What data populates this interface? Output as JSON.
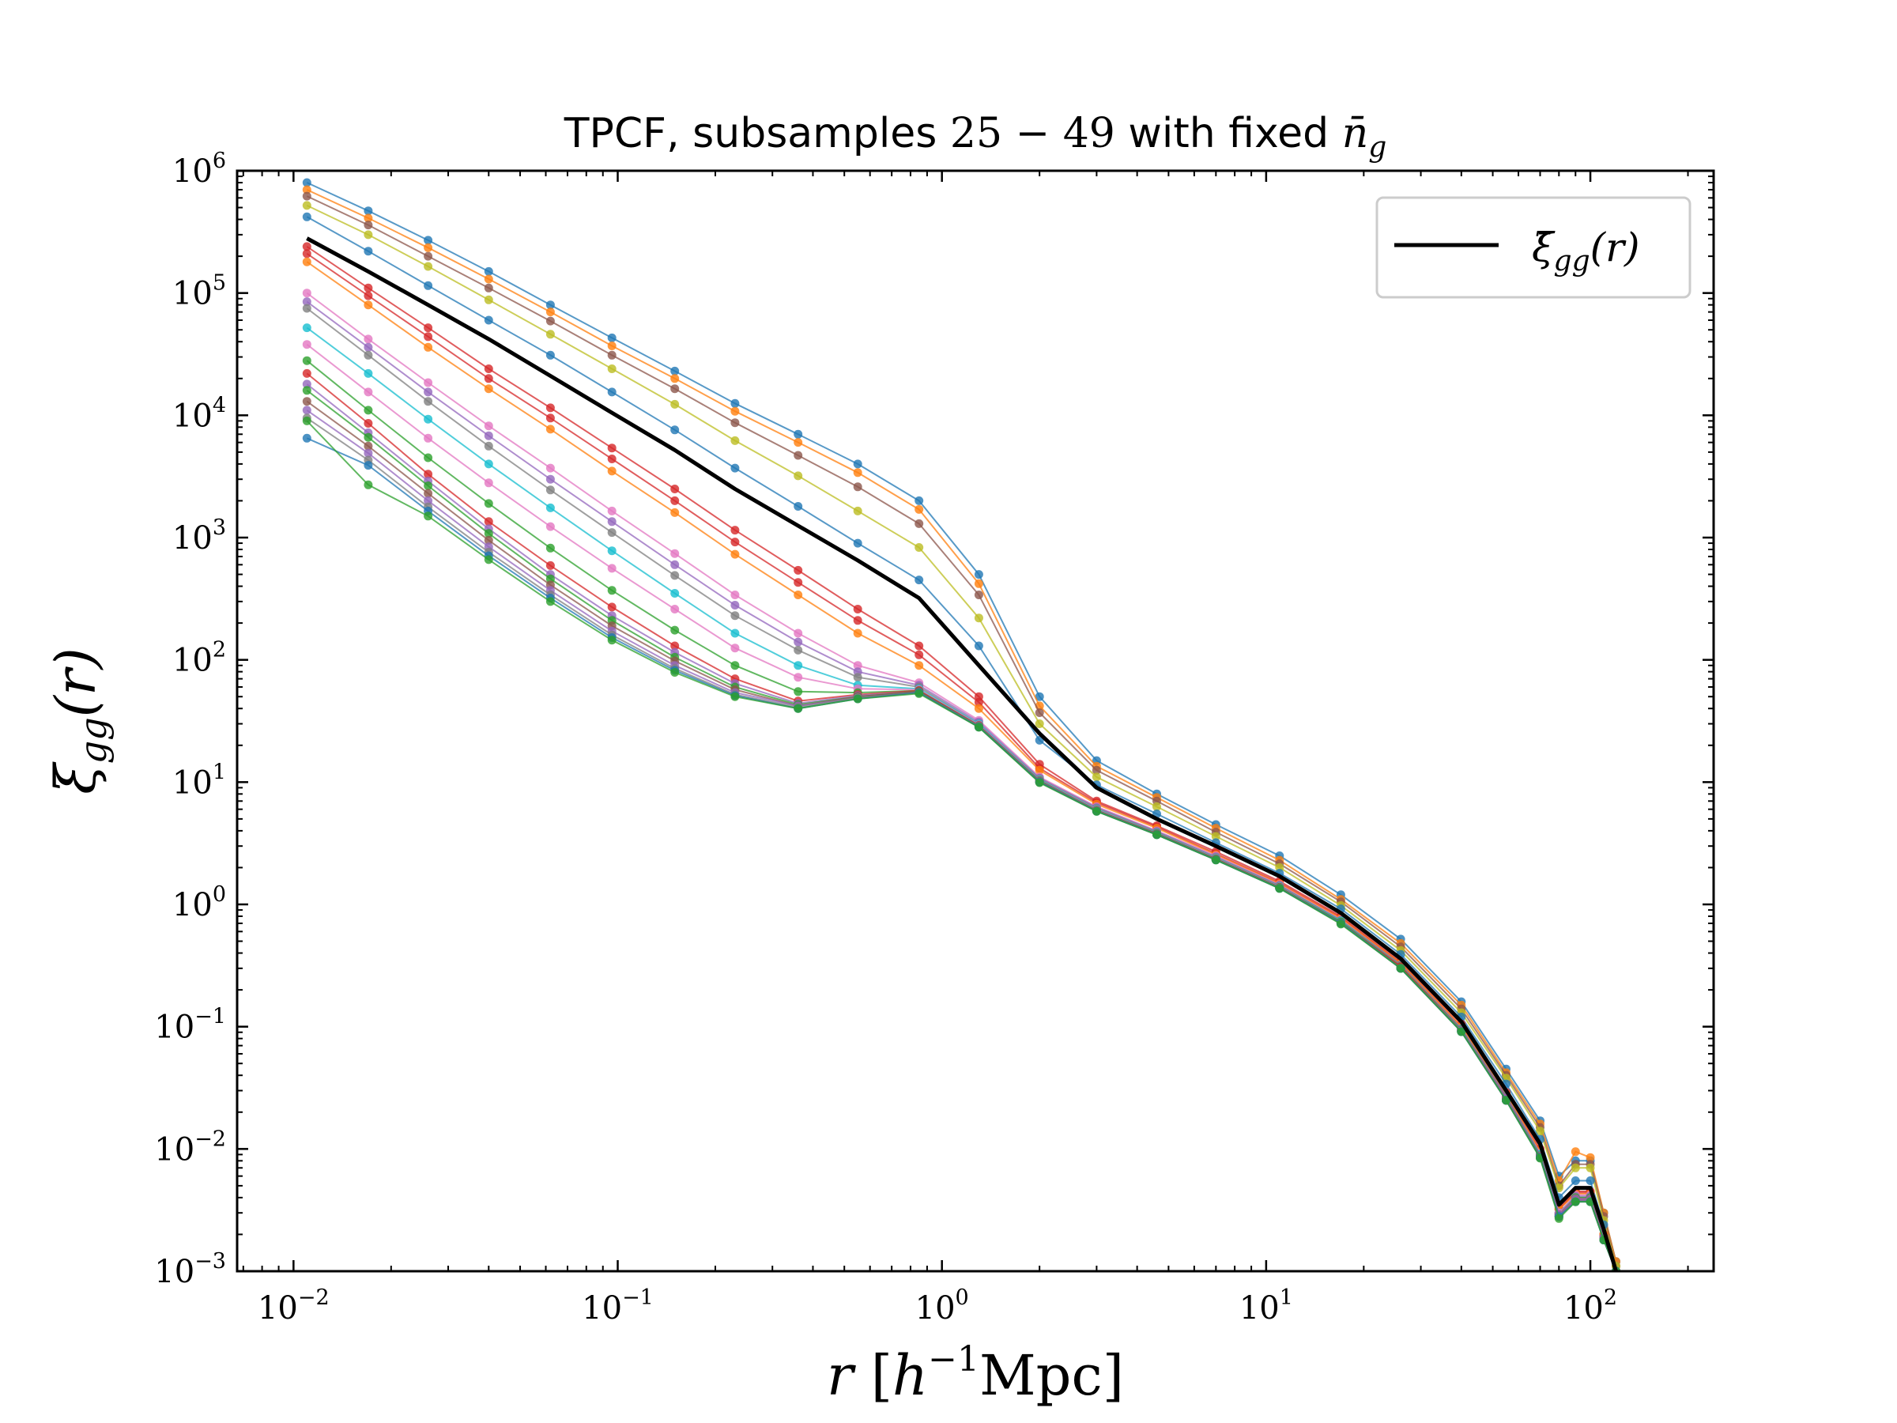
{
  "chart_data": {
    "type": "line",
    "title": "TPCF, subsamples 25 − 49 with fixed n̄g",
    "title_parts": {
      "prefix": "TPCF, subsamples ",
      "range": "25 − 49",
      "mid": " with fixed ",
      "symbol": "n̄",
      "symbol_sub": "g"
    },
    "xlabel": "r [h⁻¹Mpc]",
    "ylabel": "ξg g(r)",
    "xlabel_parts": {
      "var": "r",
      "open": " [",
      "h": "h",
      "sup": "−1",
      "unit": "Mpc",
      "close": "]"
    },
    "ylabel_parts": {
      "sym": "ξ",
      "sub": "gg",
      "arg": "(r)"
    },
    "x_scale": "log",
    "y_scale": "log",
    "xlim": [
      0.0067,
      240
    ],
    "ylim": [
      0.001,
      1000000
    ],
    "x_ticks": [
      {
        "base": "10",
        "exp": "−2",
        "value": 0.01
      },
      {
        "base": "10",
        "exp": "−1",
        "value": 0.1
      },
      {
        "base": "10",
        "exp": "0",
        "value": 1
      },
      {
        "base": "10",
        "exp": "1",
        "value": 10
      },
      {
        "base": "10",
        "exp": "2",
        "value": 100
      }
    ],
    "y_ticks": [
      {
        "base": "10",
        "exp": "−3",
        "value": 0.001
      },
      {
        "base": "10",
        "exp": "−2",
        "value": 0.01
      },
      {
        "base": "10",
        "exp": "−1",
        "value": 0.1
      },
      {
        "base": "10",
        "exp": "0",
        "value": 1
      },
      {
        "base": "10",
        "exp": "1",
        "value": 10
      },
      {
        "base": "10",
        "exp": "2",
        "value": 100
      },
      {
        "base": "10",
        "exp": "3",
        "value": 1000
      },
      {
        "base": "10",
        "exp": "4",
        "value": 10000
      },
      {
        "base": "10",
        "exp": "5",
        "value": 100000
      },
      {
        "base": "10",
        "exp": "6",
        "value": 1000000
      }
    ],
    "grid": false,
    "legend": {
      "placement": "upper-right",
      "entries": [
        {
          "label": "ξ̄gg(r)",
          "sym": "ξ̄",
          "sub": "gg",
          "arg": "(r)",
          "color": "#000000"
        }
      ]
    },
    "x": [
      0.011,
      0.017,
      0.026,
      0.04,
      0.062,
      0.096,
      0.15,
      0.23,
      0.36,
      0.55,
      0.85,
      1.3,
      2.0,
      3.0,
      4.6,
      7.0,
      11.0,
      17.0,
      26.0,
      40.0,
      55.0,
      70.0,
      80.0,
      90.0,
      100.0,
      110.0,
      120.0
    ],
    "mean_series": {
      "name": "ξ̄gg(r)",
      "color": "#000000",
      "y": [
        280000,
        150000,
        80000,
        42000,
        21000,
        10500,
        5200,
        2500,
        1250,
        650,
        320,
        90,
        25,
        9,
        5,
        3,
        1.7,
        0.85,
        0.36,
        0.11,
        0.03,
        0.011,
        0.0035,
        0.0048,
        0.0048,
        0.0022,
        0.001
      ]
    },
    "series": [
      {
        "color": "#1f77b4",
        "y": [
          800000,
          470000,
          270000,
          150000,
          80000,
          43000,
          23000,
          12500,
          7000,
          4000,
          2000,
          500,
          50,
          15,
          8,
          4.5,
          2.5,
          1.2,
          0.52,
          0.16,
          0.045,
          0.017,
          0.006,
          0.008,
          0.008,
          0.003,
          0.0012
        ]
      },
      {
        "color": "#ff7f0e",
        "y": [
          700000,
          410000,
          235000,
          130000,
          70000,
          37000,
          20000,
          10800,
          6000,
          3400,
          1700,
          420,
          42,
          13.5,
          7.5,
          4.2,
          2.3,
          1.1,
          0.48,
          0.15,
          0.042,
          0.016,
          0.0055,
          0.0095,
          0.0085,
          0.003,
          0.0012
        ]
      },
      {
        "color": "#8c564b",
        "y": [
          620000,
          360000,
          200000,
          110000,
          59000,
          31000,
          16500,
          8700,
          4700,
          2600,
          1300,
          340,
          37,
          12.5,
          7,
          3.9,
          2.15,
          1.05,
          0.45,
          0.14,
          0.04,
          0.015,
          0.005,
          0.0075,
          0.0075,
          0.0028,
          0.0011
        ]
      },
      {
        "color": "#bcbd22",
        "y": [
          520000,
          300000,
          165000,
          88000,
          46000,
          24000,
          12300,
          6200,
          3200,
          1650,
          830,
          220,
          30,
          11,
          6.3,
          3.6,
          2.0,
          0.98,
          0.42,
          0.13,
          0.038,
          0.014,
          0.0048,
          0.007,
          0.007,
          0.0026,
          0.0011
        ]
      },
      {
        "color": "#1f77b4",
        "y": [
          420000,
          220000,
          115000,
          60000,
          31000,
          15500,
          7600,
          3700,
          1800,
          900,
          450,
          130,
          22,
          9.5,
          5.5,
          3.2,
          1.8,
          0.92,
          0.39,
          0.12,
          0.034,
          0.012,
          0.004,
          0.0055,
          0.0055,
          0.0024,
          0.001
        ]
      },
      {
        "color": "#d62728",
        "y": [
          240000,
          110000,
          52000,
          24000,
          11500,
          5400,
          2500,
          1150,
          540,
          260,
          130,
          50,
          14,
          7,
          4.4,
          2.7,
          1.55,
          0.8,
          0.34,
          0.105,
          0.029,
          0.01,
          0.0033,
          0.0045,
          0.0045,
          0.002,
          0.001
        ]
      },
      {
        "color": "#d62728",
        "y": [
          210000,
          95000,
          44000,
          20000,
          9500,
          4400,
          2000,
          920,
          430,
          210,
          110,
          45,
          13,
          6.8,
          4.3,
          2.6,
          1.5,
          0.78,
          0.33,
          0.1,
          0.028,
          0.0095,
          0.0032,
          0.0044,
          0.0044,
          0.002,
          0.001
        ]
      },
      {
        "color": "#ff7f0e",
        "y": [
          180000,
          80000,
          36000,
          16500,
          7700,
          3500,
          1600,
          730,
          340,
          165,
          90,
          40,
          12.5,
          6.6,
          4.2,
          2.55,
          1.48,
          0.77,
          0.33,
          0.1,
          0.028,
          0.0095,
          0.0032,
          0.0043,
          0.0043,
          0.002,
          0.001
        ]
      },
      {
        "color": "#e377c2",
        "y": [
          100000,
          42000,
          18500,
          8200,
          3700,
          1650,
          740,
          340,
          165,
          90,
          65,
          32,
          11,
          6.3,
          4.0,
          2.5,
          1.45,
          0.75,
          0.32,
          0.097,
          0.027,
          0.0092,
          0.003,
          0.0042,
          0.0042,
          0.0019,
          0.001
        ]
      },
      {
        "color": "#9467bd",
        "y": [
          85000,
          36000,
          15500,
          6800,
          3000,
          1350,
          600,
          280,
          140,
          80,
          62,
          31,
          10.8,
          6.2,
          3.95,
          2.45,
          1.43,
          0.74,
          0.32,
          0.096,
          0.027,
          0.009,
          0.003,
          0.0041,
          0.0041,
          0.0019,
          0.001
        ]
      },
      {
        "color": "#7f7f7f",
        "y": [
          75000,
          31000,
          13000,
          5600,
          2450,
          1100,
          490,
          230,
          120,
          72,
          60,
          30,
          10.6,
          6.1,
          3.9,
          2.42,
          1.42,
          0.74,
          0.32,
          0.096,
          0.027,
          0.009,
          0.003,
          0.004,
          0.004,
          0.0019,
          0.001
        ]
      },
      {
        "color": "#17becf",
        "y": [
          52000,
          22000,
          9300,
          4000,
          1750,
          780,
          350,
          165,
          90,
          62,
          58,
          30,
          10.5,
          6.0,
          3.85,
          2.4,
          1.4,
          0.73,
          0.31,
          0.095,
          0.026,
          0.009,
          0.003,
          0.004,
          0.004,
          0.0019,
          0.001
        ]
      },
      {
        "color": "#e377c2",
        "y": [
          38000,
          15500,
          6500,
          2800,
          1230,
          560,
          260,
          125,
          72,
          58,
          57,
          29.5,
          10.4,
          5.95,
          3.82,
          2.38,
          1.39,
          0.72,
          0.31,
          0.094,
          0.026,
          0.0088,
          0.003,
          0.004,
          0.004,
          0.0019,
          0.001
        ]
      },
      {
        "color": "#2ca02c",
        "y": [
          28000,
          11000,
          4500,
          1900,
          820,
          370,
          175,
          90,
          55,
          54,
          56,
          29,
          10.3,
          5.9,
          3.8,
          2.36,
          1.38,
          0.72,
          0.31,
          0.094,
          0.026,
          0.0088,
          0.0029,
          0.004,
          0.004,
          0.0019,
          0.001
        ]
      },
      {
        "color": "#d62728",
        "y": [
          22000,
          8600,
          3300,
          1350,
          590,
          270,
          130,
          70,
          46,
          52,
          56,
          29,
          10.2,
          5.88,
          3.78,
          2.35,
          1.38,
          0.71,
          0.31,
          0.093,
          0.026,
          0.0087,
          0.0029,
          0.0039,
          0.0039,
          0.0019,
          0.001
        ]
      },
      {
        "color": "#9467bd",
        "y": [
          18000,
          7200,
          2900,
          1180,
          500,
          230,
          115,
          64,
          44,
          51,
          55,
          28.8,
          10.2,
          5.85,
          3.76,
          2.34,
          1.37,
          0.71,
          0.3,
          0.093,
          0.026,
          0.0087,
          0.0029,
          0.0039,
          0.0039,
          0.0019,
          0.001
        ]
      },
      {
        "color": "#2ca02c",
        "y": [
          16000,
          6600,
          2650,
          1080,
          460,
          210,
          105,
          60,
          43,
          50,
          55,
          28.6,
          10.1,
          5.83,
          3.75,
          2.33,
          1.37,
          0.71,
          0.3,
          0.092,
          0.025,
          0.0086,
          0.0028,
          0.0038,
          0.0038,
          0.0018,
          0.001
        ]
      },
      {
        "color": "#8c564b",
        "y": [
          13000,
          5600,
          2300,
          950,
          410,
          190,
          98,
          57,
          42,
          50,
          55,
          28.5,
          10.1,
          5.82,
          3.74,
          2.33,
          1.36,
          0.7,
          0.3,
          0.092,
          0.025,
          0.0086,
          0.0028,
          0.0038,
          0.0038,
          0.0018,
          0.001
        ]
      },
      {
        "color": "#9467bd",
        "y": [
          11000,
          4900,
          2000,
          840,
          370,
          172,
          90,
          54,
          42,
          49,
          54,
          28.4,
          10.0,
          5.8,
          3.73,
          2.32,
          1.36,
          0.7,
          0.3,
          0.092,
          0.025,
          0.0085,
          0.0028,
          0.0038,
          0.0038,
          0.0018,
          0.001
        ]
      },
      {
        "color": "#7f7f7f",
        "y": [
          9500,
          4300,
          1780,
          760,
          340,
          160,
          85,
          52,
          41,
          49,
          54,
          28.3,
          10.0,
          5.8,
          3.72,
          2.32,
          1.36,
          0.7,
          0.3,
          0.091,
          0.025,
          0.0085,
          0.0028,
          0.0037,
          0.0037,
          0.0018,
          0.001
        ]
      },
      {
        "color": "#1f77b4",
        "y": [
          6500,
          3900,
          1650,
          710,
          320,
          152,
          82,
          51,
          40,
          48,
          54,
          28.2,
          10.0,
          5.78,
          3.72,
          2.31,
          1.35,
          0.7,
          0.3,
          0.091,
          0.025,
          0.0085,
          0.0028,
          0.0037,
          0.0037,
          0.0018,
          0.001
        ]
      },
      {
        "color": "#2ca02c",
        "y": [
          9000,
          2700,
          1500,
          660,
          300,
          145,
          79,
          50,
          40,
          48,
          53,
          28.1,
          9.9,
          5.77,
          3.71,
          2.31,
          1.35,
          0.69,
          0.3,
          0.091,
          0.025,
          0.0084,
          0.0027,
          0.0037,
          0.0037,
          0.0018,
          0.001
        ]
      }
    ]
  }
}
